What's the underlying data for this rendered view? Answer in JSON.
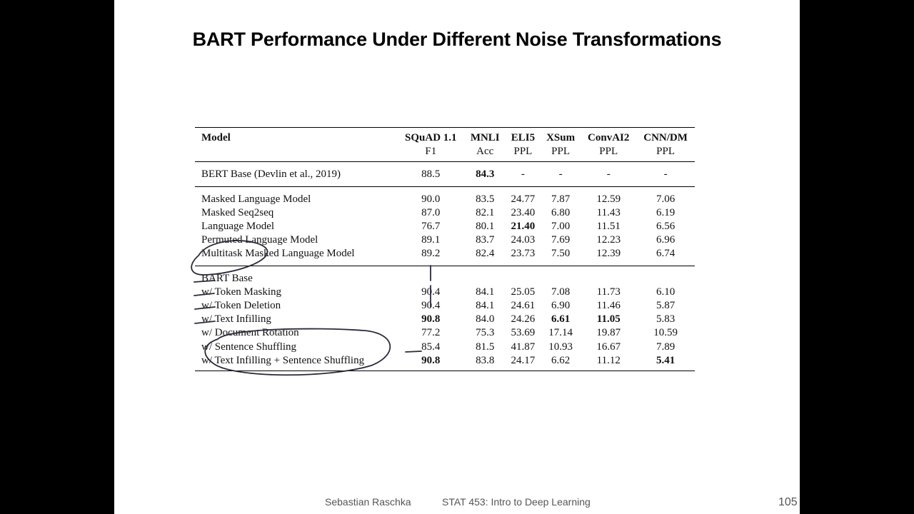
{
  "slide": {
    "title": "BART Performance Under Different Noise Transformations",
    "footer_author": "Sebastian Raschka",
    "footer_course": "STAT 453: Intro to Deep Learning",
    "page_number": "105"
  },
  "table": {
    "headers": [
      {
        "name": "Model",
        "metric": ""
      },
      {
        "name": "SQuAD 1.1",
        "metric": "F1"
      },
      {
        "name": "MNLI",
        "metric": "Acc"
      },
      {
        "name": "ELI5",
        "metric": "PPL"
      },
      {
        "name": "XSum",
        "metric": "PPL"
      },
      {
        "name": "ConvAI2",
        "metric": "PPL"
      },
      {
        "name": "CNN/DM",
        "metric": "PPL"
      }
    ],
    "rows": [
      {
        "cells": [
          "BERT Base (Devlin et al., 2019)",
          "88.5",
          "84.3",
          "-",
          "-",
          "-",
          "-"
        ],
        "bold": [
          2
        ]
      },
      {
        "cells": [
          "Masked Language Model",
          "90.0",
          "83.5",
          "24.77",
          "7.87",
          "12.59",
          "7.06"
        ],
        "bold": []
      },
      {
        "cells": [
          "Masked Seq2seq",
          "87.0",
          "82.1",
          "23.40",
          "6.80",
          "11.43",
          "6.19"
        ],
        "bold": []
      },
      {
        "cells": [
          "Language Model",
          "76.7",
          "80.1",
          "21.40",
          "7.00",
          "11.51",
          "6.56"
        ],
        "bold": [
          3
        ]
      },
      {
        "cells": [
          "Permuted Language Model",
          "89.1",
          "83.7",
          "24.03",
          "7.69",
          "12.23",
          "6.96"
        ],
        "bold": []
      },
      {
        "cells": [
          "Multitask Masked Language Model",
          "89.2",
          "82.4",
          "23.73",
          "7.50",
          "12.39",
          "6.74"
        ],
        "bold": []
      },
      {
        "cells": [
          "BART Base",
          "",
          "",
          "",
          "",
          "",
          ""
        ],
        "bold": []
      },
      {
        "cells": [
          "w/ Token Masking",
          "90.4",
          "84.1",
          "25.05",
          "7.08",
          "11.73",
          "6.10"
        ],
        "bold": []
      },
      {
        "cells": [
          "w/ Token Deletion",
          "90.4",
          "84.1",
          "24.61",
          "6.90",
          "11.46",
          "5.87"
        ],
        "bold": []
      },
      {
        "cells": [
          "w/ Text Infilling",
          "90.8",
          "84.0",
          "24.26",
          "6.61",
          "11.05",
          "5.83"
        ],
        "bold": [
          1,
          4,
          5
        ]
      },
      {
        "cells": [
          "w/ Document Rotation",
          "77.2",
          "75.3",
          "53.69",
          "17.14",
          "19.87",
          "10.59"
        ],
        "bold": []
      },
      {
        "cells": [
          "w/ Sentence Shuffling",
          "85.4",
          "81.5",
          "41.87",
          "10.93",
          "16.67",
          "7.89"
        ],
        "bold": []
      },
      {
        "cells": [
          "w/ Text Infilling + Sentence Shuffling",
          "90.8",
          "83.8",
          "24.17",
          "6.62",
          "11.12",
          "5.41"
        ],
        "bold": [
          1,
          6
        ]
      }
    ]
  }
}
